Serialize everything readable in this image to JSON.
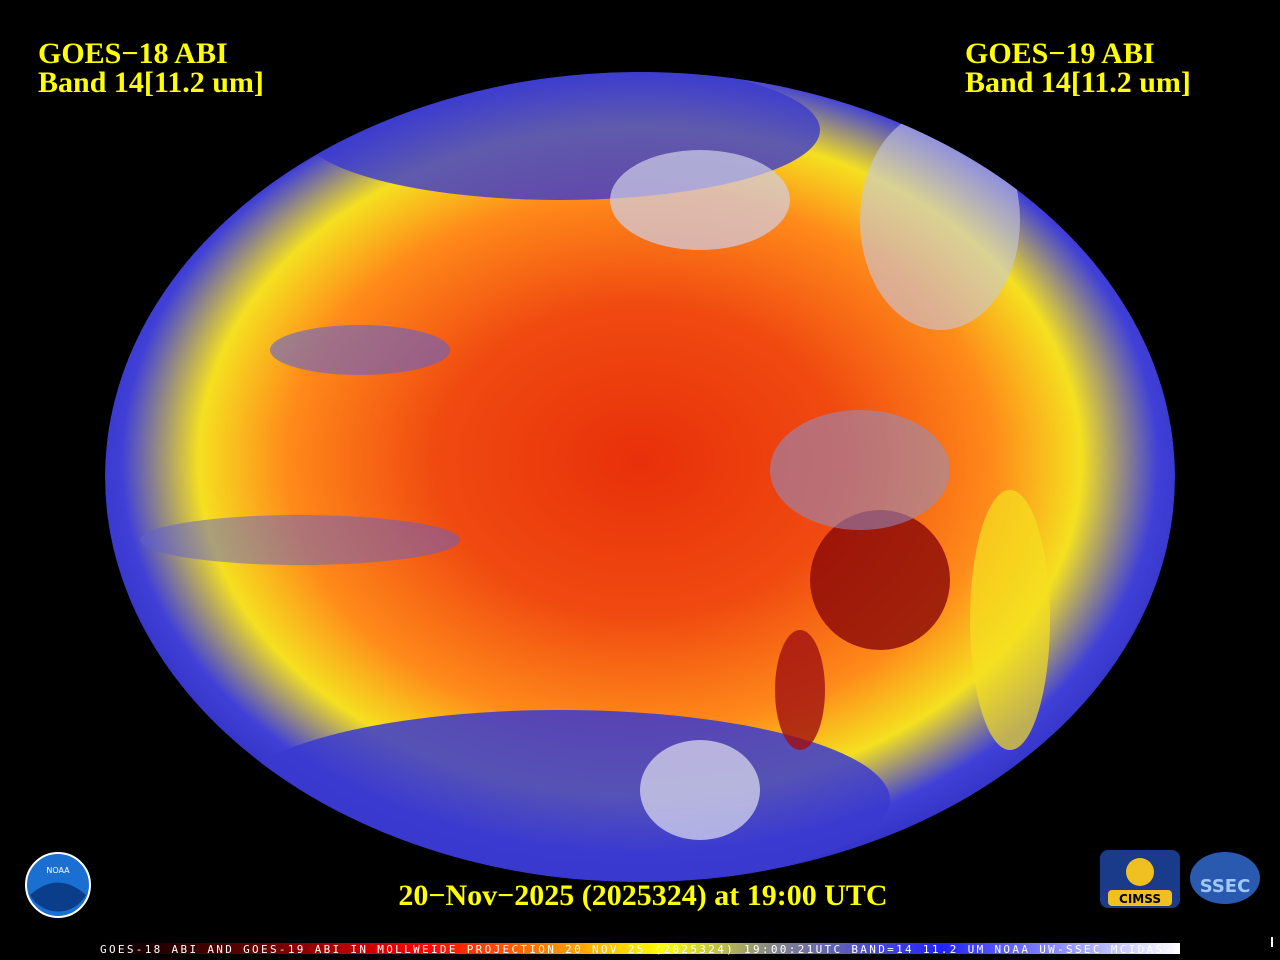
{
  "header_left": {
    "line1": "GOES−18 ABI",
    "line2": "Band 14[11.2 um]"
  },
  "header_right": {
    "line1": "GOES−19 ABI",
    "line2": "Band 14[11.2 um]"
  },
  "timestamp": "20−Nov−2025 (2025324) at 19:00 UTC",
  "footer": "GOES-18 ABI AND GOES-19 ABI IN MOLLWEIDE PROJECTION 20 NOV 25 (2025324) 19:00:21UTC BAND=14 11.2 UM NOAA UW-SSEC MCIDAS-X",
  "logos": {
    "noaa": "NOAA",
    "cimss": "CIMSS",
    "ssec": "SSEC"
  }
}
